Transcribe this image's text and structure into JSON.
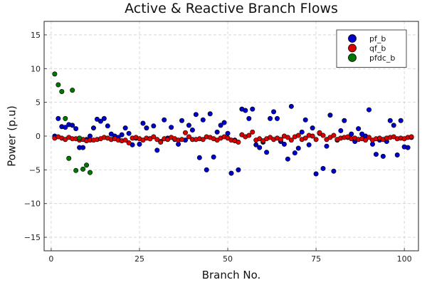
{
  "chart_data": {
    "type": "scatter",
    "title": "Active & Reactive Branch Flows",
    "xlabel": "Branch No.",
    "ylabel": "Power (p.u)",
    "xlim": [
      -2,
      104
    ],
    "ylim": [
      -17,
      17
    ],
    "xticks": [
      0,
      25,
      50,
      75,
      100
    ],
    "xtick_labels": [
      "0",
      "25",
      "50",
      "75",
      "100"
    ],
    "yticks": [
      -15,
      -10,
      -5,
      0,
      5,
      10,
      15
    ],
    "ytick_labels": [
      "−15",
      "−10",
      "−5",
      "0",
      "5",
      "10",
      "15"
    ],
    "grid": true,
    "legend_position": "top-right",
    "series": [
      {
        "name": "pf_b",
        "color": "#0000cc",
        "x": [
          1,
          2,
          3,
          4,
          5,
          6,
          7,
          8,
          9,
          10,
          11,
          12,
          13,
          14,
          15,
          16,
          17,
          18,
          19,
          20,
          21,
          22,
          23,
          24,
          25,
          26,
          27,
          28,
          29,
          30,
          31,
          32,
          33,
          34,
          35,
          36,
          37,
          38,
          39,
          40,
          41,
          42,
          43,
          44,
          45,
          46,
          47,
          48,
          49,
          50,
          51,
          52,
          53,
          54,
          55,
          56,
          57,
          58,
          59,
          60,
          61,
          62,
          63,
          64,
          65,
          66,
          67,
          68,
          69,
          70,
          71,
          72,
          73,
          74,
          75,
          76,
          77,
          78,
          79,
          80,
          81,
          82,
          83,
          84,
          85,
          86,
          87,
          88,
          89,
          90,
          91,
          92,
          93,
          94,
          95,
          96,
          97,
          98,
          99,
          100,
          101,
          102
        ],
        "y": [
          0.0,
          2.6,
          1.4,
          1.3,
          1.7,
          1.6,
          1.1,
          -1.7,
          -1.7,
          -0.5,
          0.0,
          1.2,
          2.5,
          2.2,
          2.6,
          1.5,
          0.3,
          0.0,
          -0.2,
          0.2,
          1.2,
          0.4,
          -1.3,
          -0.3,
          -1.2,
          1.9,
          1.2,
          -0.4,
          1.5,
          -2.1,
          -0.8,
          2.4,
          -0.3,
          1.3,
          -0.5,
          -1.2,
          2.3,
          -0.6,
          1.6,
          0.9,
          3.2,
          -3.2,
          2.4,
          -5.0,
          3.3,
          -3.1,
          0.6,
          1.6,
          2.0,
          0.4,
          -5.5,
          -0.6,
          -5.0,
          4.0,
          3.8,
          2.6,
          4.0,
          -1.3,
          -1.7,
          -0.9,
          -2.4,
          2.6,
          3.6,
          2.6,
          -0.8,
          -1.2,
          -3.4,
          4.4,
          -2.5,
          -1.8,
          0.6,
          2.4,
          -1.3,
          1.2,
          -5.6,
          0.4,
          -4.8,
          -1.5,
          3.1,
          -5.2,
          -0.6,
          0.8,
          2.3,
          -0.2,
          0.3,
          -0.8,
          1.1,
          0.3,
          0.0,
          3.9,
          -1.2,
          -2.7,
          -0.6,
          -3.0,
          -0.8,
          2.3,
          1.6,
          -2.8,
          2.3,
          -1.6,
          -1.7,
          -0.2
        ]
      },
      {
        "name": "qf_b",
        "color": "#dd0000",
        "x": [
          1,
          2,
          3,
          4,
          5,
          6,
          7,
          8,
          9,
          10,
          11,
          12,
          13,
          14,
          15,
          16,
          17,
          18,
          19,
          20,
          21,
          22,
          23,
          24,
          25,
          26,
          27,
          28,
          29,
          30,
          31,
          32,
          33,
          34,
          35,
          36,
          37,
          38,
          39,
          40,
          41,
          42,
          43,
          44,
          45,
          46,
          47,
          48,
          49,
          50,
          51,
          52,
          53,
          54,
          55,
          56,
          57,
          58,
          59,
          60,
          61,
          62,
          63,
          64,
          65,
          66,
          67,
          68,
          69,
          70,
          71,
          72,
          73,
          74,
          75,
          76,
          77,
          78,
          79,
          80,
          81,
          82,
          83,
          84,
          85,
          86,
          87,
          88,
          89,
          90,
          91,
          92,
          93,
          94,
          95,
          96,
          97,
          98,
          99,
          100,
          101,
          102
        ],
        "y": [
          -0.3,
          -0.1,
          -0.3,
          -0.5,
          -0.2,
          -0.4,
          -0.4,
          -0.6,
          -0.5,
          -0.7,
          -0.6,
          -0.6,
          -0.5,
          -0.4,
          -0.2,
          -0.3,
          -0.5,
          -0.4,
          -0.6,
          -0.7,
          -0.6,
          -1.0,
          -0.3,
          -0.2,
          -0.4,
          -0.6,
          -0.3,
          -0.4,
          -0.1,
          -0.5,
          -0.9,
          -0.4,
          -0.5,
          -0.2,
          -0.4,
          -0.6,
          -0.5,
          0.5,
          -0.1,
          -0.5,
          -0.5,
          -0.4,
          -0.5,
          -0.1,
          -0.2,
          -0.4,
          -0.6,
          -0.3,
          -0.1,
          -0.3,
          -0.6,
          -0.7,
          -0.9,
          0.2,
          -0.1,
          0.1,
          0.6,
          -0.6,
          -0.4,
          -0.7,
          -0.4,
          -0.2,
          -0.5,
          -0.3,
          -0.5,
          0.0,
          -0.2,
          -0.6,
          -0.1,
          0.1,
          -0.5,
          -0.3,
          0.1,
          0.0,
          -0.5,
          0.5,
          0.1,
          -0.5,
          -0.2,
          0.1,
          -0.5,
          -0.3,
          -0.2,
          -0.1,
          -0.4,
          -0.3,
          -0.5,
          -0.4,
          -0.6,
          -0.2,
          -0.6,
          -0.4,
          -0.3,
          -0.5,
          -0.3,
          -0.2,
          -0.1,
          -0.4,
          -0.3,
          -0.4,
          -0.2,
          -0.1
        ]
      },
      {
        "name": "pfdc_b",
        "color": "#007700",
        "x": [
          1,
          2,
          3,
          4,
          5,
          6,
          7,
          8,
          9,
          10,
          11
        ],
        "y": [
          9.2,
          7.6,
          6.6,
          2.6,
          -3.3,
          6.8,
          -5.1,
          -0.3,
          -4.9,
          -4.3,
          -5.4
        ]
      }
    ]
  }
}
